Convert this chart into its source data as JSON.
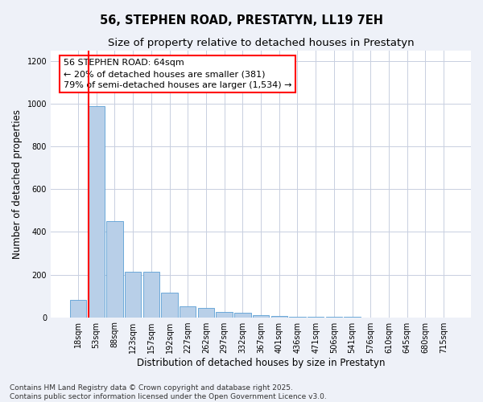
{
  "title_line1": "56, STEPHEN ROAD, PRESTATYN, LL19 7EH",
  "title_line2": "Size of property relative to detached houses in Prestatyn",
  "xlabel": "Distribution of detached houses by size in Prestatyn",
  "ylabel": "Number of detached properties",
  "categories": [
    "18sqm",
    "53sqm",
    "88sqm",
    "123sqm",
    "157sqm",
    "192sqm",
    "227sqm",
    "262sqm",
    "297sqm",
    "332sqm",
    "367sqm",
    "401sqm",
    "436sqm",
    "471sqm",
    "506sqm",
    "541sqm",
    "576sqm",
    "610sqm",
    "645sqm",
    "680sqm",
    "715sqm"
  ],
  "values": [
    80,
    990,
    450,
    215,
    215,
    115,
    50,
    45,
    25,
    20,
    10,
    5,
    3,
    2,
    1,
    1,
    0,
    0,
    0,
    0,
    0
  ],
  "bar_color": "#b8cfe8",
  "bar_edge_color": "#5a9fd4",
  "vline_color": "red",
  "vline_xindex": 0.575,
  "annotation_text": "56 STEPHEN ROAD: 64sqm\n← 20% of detached houses are smaller (381)\n79% of semi-detached houses are larger (1,534) →",
  "annotation_box_color": "white",
  "annotation_box_edge": "red",
  "ylim": [
    0,
    1250
  ],
  "yticks": [
    0,
    200,
    400,
    600,
    800,
    1000,
    1200
  ],
  "footer_text": "Contains HM Land Registry data © Crown copyright and database right 2025.\nContains public sector information licensed under the Open Government Licence v3.0.",
  "background_color": "#eef1f8",
  "plot_background": "white",
  "grid_color": "#c8cfe0",
  "title_fontsize": 10.5,
  "subtitle_fontsize": 9.5,
  "axis_label_fontsize": 8.5,
  "tick_fontsize": 7,
  "annotation_fontsize": 8,
  "footer_fontsize": 6.5
}
